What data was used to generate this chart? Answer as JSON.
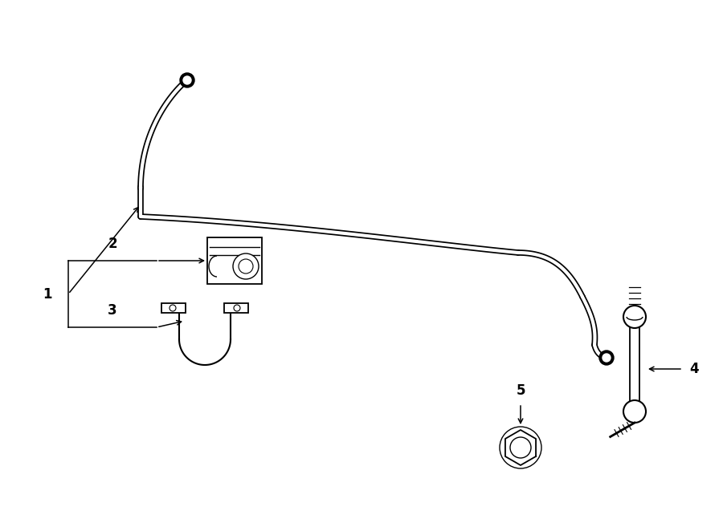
{
  "bg_color": "#ffffff",
  "line_color": "#000000",
  "bar_lw_outer": 5.5,
  "bar_lw_inner": 3.0,
  "label_fontsize": 12,
  "label_fontweight": "bold",
  "figsize": [
    9.0,
    6.62
  ],
  "dpi": 100
}
